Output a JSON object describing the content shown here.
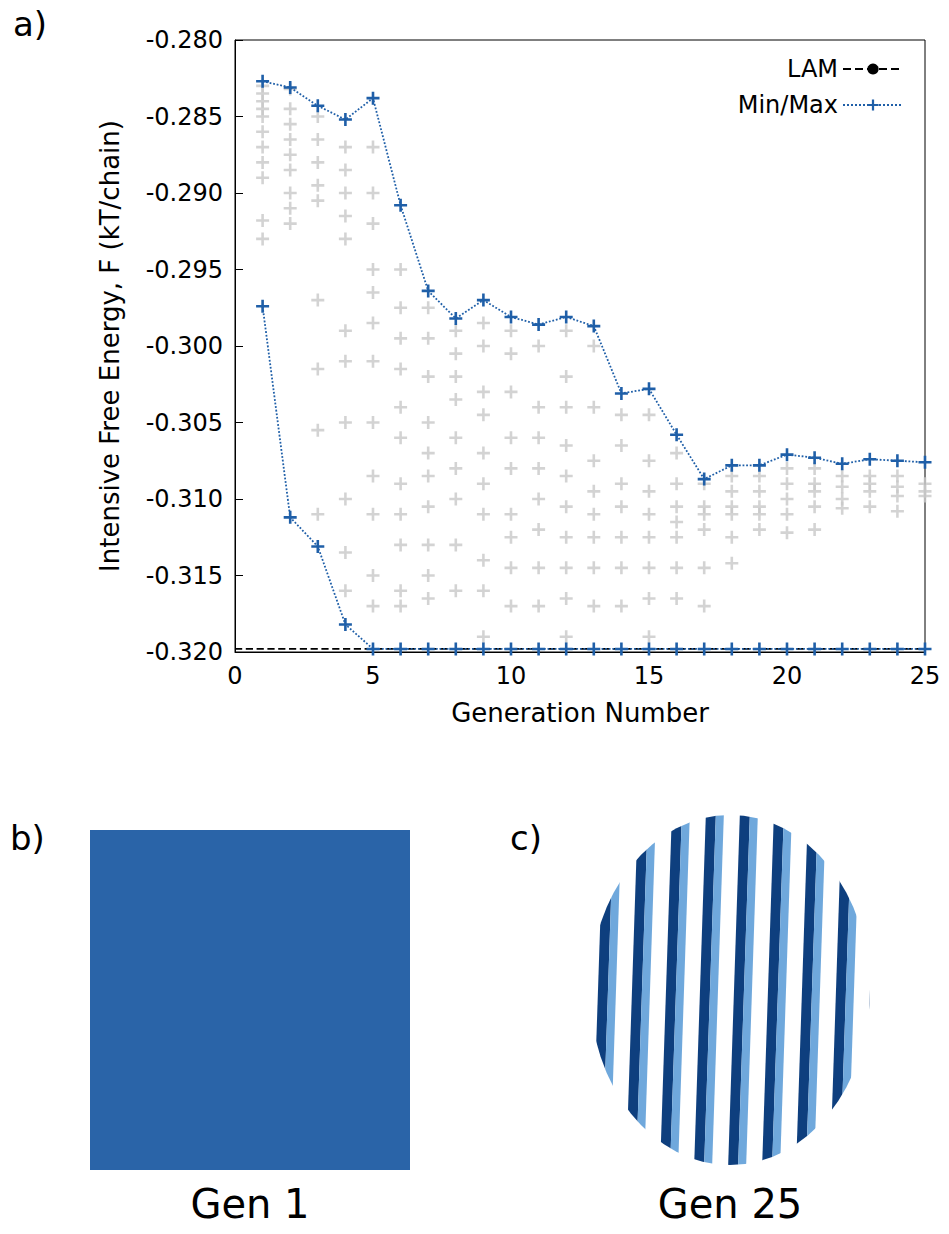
{
  "chart_data": {
    "type": "line",
    "title": "a)",
    "x_label": "Generation Number",
    "y_label": "Intensive Free Energy, F (kT/chain)",
    "xlim": [
      0,
      25
    ],
    "xticks": [
      0,
      5,
      10,
      15,
      20,
      25
    ],
    "ylim": [
      -0.32,
      -0.28
    ],
    "yticks": [
      {
        "value": -0.32,
        "label": "-0.320"
      },
      -0.315,
      {
        "value": -0.31,
        "label": "-0.310"
      },
      -0.305,
      {
        "value": -0.3,
        "label": "-0.300"
      },
      -0.295,
      {
        "value": -0.29,
        "label": "-0.290"
      },
      -0.285,
      {
        "value": -0.28,
        "label": "-0.280"
      }
    ],
    "grid": false,
    "legend": "top-right",
    "series": [
      {
        "type": "scatter",
        "color": "#c8c8c8",
        "marker": "+",
        "x": [
          1,
          2,
          3,
          4,
          5,
          6,
          7,
          8,
          9,
          10,
          11,
          12,
          13,
          14,
          15,
          16,
          17,
          18,
          19,
          20,
          21,
          22,
          23,
          24,
          25
        ],
        "values": [
          [
            -0.283,
            -0.2835,
            -0.284,
            -0.2845,
            -0.285,
            -0.286,
            -0.287,
            -0.288,
            -0.289,
            -0.2918,
            -0.293
          ],
          [
            -0.2832,
            -0.2845,
            -0.2855,
            -0.2865,
            -0.2875,
            -0.2885,
            -0.29,
            -0.291,
            -0.292
          ],
          [
            -0.285,
            -0.2865,
            -0.288,
            -0.2895,
            -0.2905,
            -0.297,
            -0.3015,
            -0.3055,
            -0.311
          ],
          [
            -0.287,
            -0.2885,
            -0.29,
            -0.2915,
            -0.293,
            -0.299,
            -0.301,
            -0.305,
            -0.31,
            -0.3135,
            -0.316
          ],
          [
            -0.287,
            -0.29,
            -0.292,
            -0.295,
            -0.2965,
            -0.2985,
            -0.301,
            -0.305,
            -0.3085,
            -0.311,
            -0.315,
            -0.317
          ],
          [
            -0.295,
            -0.2975,
            -0.2995,
            -0.3015,
            -0.304,
            -0.306,
            -0.309,
            -0.311,
            -0.313,
            -0.316,
            -0.317
          ],
          [
            -0.2975,
            -0.2995,
            -0.302,
            -0.305,
            -0.307,
            -0.3085,
            -0.3105,
            -0.313,
            -0.315,
            -0.3165
          ],
          [
            -0.299,
            -0.3005,
            -0.302,
            -0.3035,
            -0.306,
            -0.308,
            -0.31,
            -0.313,
            -0.316
          ],
          [
            -0.2985,
            -0.3,
            -0.303,
            -0.3045,
            -0.307,
            -0.309,
            -0.311,
            -0.314,
            -0.316,
            -0.319
          ],
          [
            -0.299,
            -0.3005,
            -0.303,
            -0.306,
            -0.308,
            -0.311,
            -0.3125,
            -0.3145,
            -0.317
          ],
          [
            -0.3,
            -0.304,
            -0.306,
            -0.308,
            -0.31,
            -0.312,
            -0.3145,
            -0.317
          ],
          [
            -0.299,
            -0.302,
            -0.304,
            -0.3065,
            -0.3085,
            -0.3105,
            -0.3125,
            -0.3145,
            -0.3165,
            -0.319
          ],
          [
            -0.3,
            -0.304,
            -0.3075,
            -0.3095,
            -0.311,
            -0.3125,
            -0.3145,
            -0.317
          ],
          [
            -0.3045,
            -0.3065,
            -0.309,
            -0.3105,
            -0.3125,
            -0.3145,
            -0.317
          ],
          [
            -0.3045,
            -0.3075,
            -0.3095,
            -0.311,
            -0.3125,
            -0.3145,
            -0.3165,
            -0.319
          ],
          [
            -0.307,
            -0.309,
            -0.3105,
            -0.3115,
            -0.3125,
            -0.3145,
            -0.3165
          ],
          [
            -0.309,
            -0.3105,
            -0.311,
            -0.312,
            -0.3145,
            -0.317
          ],
          [
            -0.3085,
            -0.3095,
            -0.3105,
            -0.311,
            -0.3125,
            -0.3142
          ],
          [
            -0.3085,
            -0.3095,
            -0.3105,
            -0.311,
            -0.312
          ],
          [
            -0.308,
            -0.309,
            -0.31,
            -0.311,
            -0.3122
          ],
          [
            -0.308,
            -0.309,
            -0.3095,
            -0.3105,
            -0.312
          ],
          [
            -0.3085,
            -0.3092,
            -0.31,
            -0.3106
          ],
          [
            -0.3085,
            -0.309,
            -0.3095,
            -0.3105
          ],
          [
            -0.3085,
            -0.3092,
            -0.3098,
            -0.3108
          ],
          [
            -0.309,
            -0.3095,
            -0.3098
          ]
        ]
      },
      {
        "name": "LAM",
        "type": "line",
        "color": "#000000",
        "marker": "none",
        "line_style": "dashed",
        "x": [
          0,
          25
        ],
        "values": [
          -0.3198,
          -0.3198
        ]
      },
      {
        "name": "Min/Max",
        "type": "line",
        "color": "#1f5fa8",
        "marker": "+",
        "line_style": "dotted",
        "x": [
          1,
          2,
          3,
          4,
          5,
          6,
          7,
          8,
          9,
          10,
          11,
          12,
          13,
          14,
          15,
          16,
          17,
          18,
          19,
          20,
          21,
          22,
          23,
          24,
          25
        ],
        "values": [
          -0.2827,
          -0.2831,
          -0.2843,
          -0.2852,
          -0.2838,
          -0.2908,
          -0.2964,
          -0.2982,
          -0.297,
          -0.2981,
          -0.2986,
          -0.2981,
          -0.2987,
          -0.3031,
          -0.3028,
          -0.3058,
          -0.3087,
          -0.3078,
          -0.3078,
          -0.3071,
          -0.3073,
          -0.3077,
          -0.3074,
          -0.3075,
          -0.3076
        ]
      },
      {
        "name": "Min/Max",
        "type": "line",
        "color": "#1f5fa8",
        "marker": "+",
        "line_style": "dotted",
        "x": [
          1,
          2,
          3,
          4,
          5,
          6,
          7,
          8,
          9,
          10,
          11,
          12,
          13,
          14,
          15,
          16,
          17,
          18,
          19,
          20,
          21,
          22,
          23,
          24,
          25
        ],
        "values": [
          -0.2974,
          -0.3112,
          -0.3131,
          -0.3182,
          -0.3198,
          -0.3198,
          -0.3198,
          -0.3198,
          -0.3198,
          -0.3198,
          -0.3198,
          -0.3198,
          -0.3198,
          -0.3198,
          -0.3198,
          -0.3198,
          -0.3198,
          -0.3198,
          -0.3198,
          -0.3198,
          -0.3198,
          -0.3198,
          -0.3198,
          -0.3198,
          -0.3198
        ]
      }
    ]
  },
  "panels": [
    {
      "letter": "b)",
      "caption": "Gen 1"
    },
    {
      "letter": "c)",
      "caption": "Gen 25"
    }
  ]
}
